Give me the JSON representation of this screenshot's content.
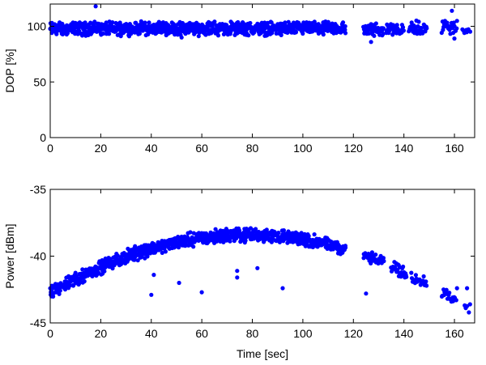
{
  "chart_data": [
    {
      "type": "scatter",
      "ylabel": "DOP [%]",
      "xlabel": "",
      "xlim": [
        0,
        168
      ],
      "ylim": [
        0,
        120
      ],
      "xticks": [
        "0",
        "20",
        "40",
        "60",
        "80",
        "100",
        "120",
        "140",
        "160"
      ],
      "yticks": [
        "0",
        "50",
        "100"
      ],
      "color": "#0000ff",
      "grid": false,
      "series": [
        {
          "segments": [
            {
              "x_start": 0,
              "x_end": 117,
              "base": 98,
              "spread": 7,
              "step": 0.12
            },
            {
              "x_start": 124,
              "x_end": 132,
              "base": 97,
              "spread": 7,
              "step": 0.15
            },
            {
              "x_start": 133,
              "x_end": 140,
              "base": 98,
              "spread": 7,
              "step": 0.18
            },
            {
              "x_start": 142,
              "x_end": 149,
              "base": 98,
              "spread": 8,
              "step": 0.2
            },
            {
              "x_start": 155,
              "x_end": 161,
              "base": 100,
              "spread": 8,
              "step": 0.25
            },
            {
              "x_start": 163,
              "x_end": 166,
              "base": 96,
              "spread": 3,
              "step": 0.5
            }
          ],
          "extra_points": [
            [
              18,
              118
            ],
            [
              159,
              114
            ],
            [
              52,
              90
            ],
            [
              127,
              86
            ],
            [
              160,
              89
            ]
          ]
        }
      ]
    },
    {
      "type": "scatter",
      "ylabel": "Power [dBm]",
      "xlabel": "Time [sec]",
      "xlim": [
        0,
        168
      ],
      "ylim": [
        -45,
        -35
      ],
      "xticks": [
        "0",
        "20",
        "40",
        "60",
        "80",
        "100",
        "120",
        "140",
        "160"
      ],
      "yticks": [
        "-45",
        "-40",
        "-35"
      ],
      "color": "#0000ff",
      "grid": false,
      "series": [
        {
          "trend": {
            "peak_x": 78,
            "peak_y": -38.4,
            "curvature": 0.00072
          },
          "segments": [
            {
              "x_start": 0,
              "x_end": 117,
              "spread": 0.6,
              "step": 0.12
            },
            {
              "x_start": 124,
              "x_end": 132,
              "spread": 0.5,
              "step": 0.2
            },
            {
              "x_start": 135,
              "x_end": 141,
              "spread": 0.6,
              "step": 0.2
            },
            {
              "x_start": 143,
              "x_end": 149,
              "spread": 0.5,
              "step": 0.25
            },
            {
              "x_start": 155,
              "x_end": 161,
              "spread": 0.5,
              "step": 0.3
            },
            {
              "x_start": 164,
              "x_end": 166,
              "spread": 0.4,
              "step": 0.5
            }
          ],
          "extra_points": [
            [
              40,
              -42.9
            ],
            [
              60,
              -42.7
            ],
            [
              41,
              -41.4
            ],
            [
              51,
              -42.0
            ],
            [
              74,
              -41.1
            ],
            [
              74,
              -41.6
            ],
            [
              82,
              -40.9
            ],
            [
              92,
              -42.4
            ],
            [
              125,
              -42.8
            ],
            [
              138,
              -41.5
            ],
            [
              161,
              -42.4
            ],
            [
              165,
              -42.4
            ]
          ]
        }
      ]
    }
  ]
}
